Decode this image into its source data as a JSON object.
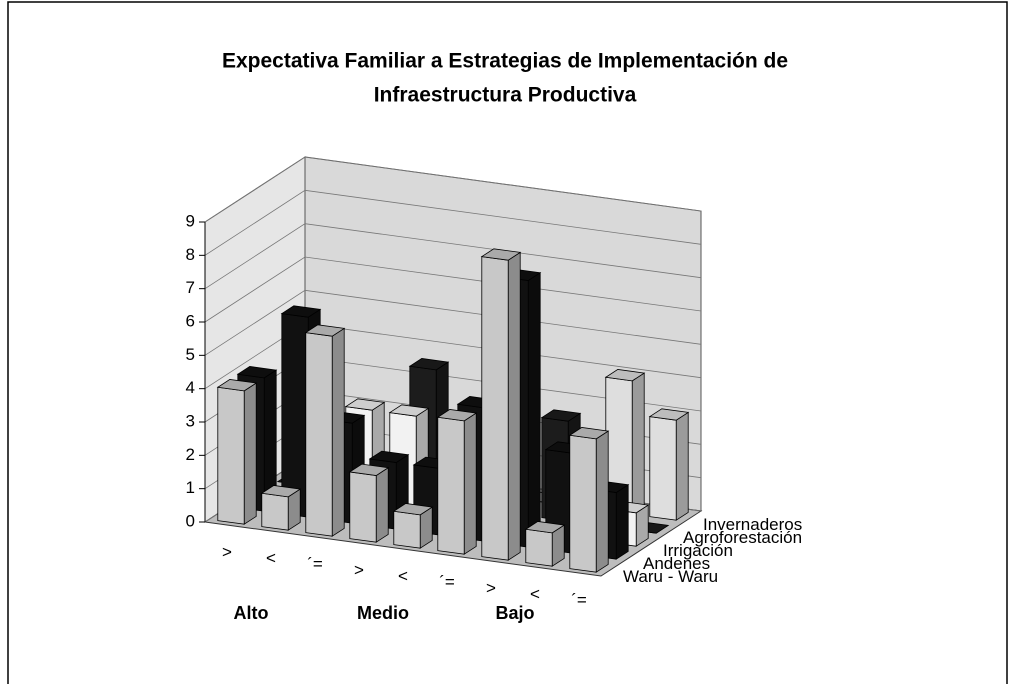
{
  "chart_data": {
    "type": "bar3d",
    "title": [
      "Expectativa Familiar a Estrategias de Implementación de",
      "Infraestructura Productiva"
    ],
    "categories": [
      ">",
      "<",
      "´=",
      ">",
      "<",
      "´=",
      ">",
      "<",
      "´="
    ],
    "groups": [
      "Alto",
      "Medio",
      "Bajo"
    ],
    "series": [
      {
        "name": "Waru - Waru",
        "color": "#c8c8c8",
        "values": [
          4,
          1,
          6,
          2,
          1,
          4,
          9,
          1,
          4
        ]
      },
      {
        "name": "Andenes",
        "color": "#111111",
        "values": [
          4,
          6,
          3,
          2,
          2,
          4,
          8,
          3,
          2
        ]
      },
      {
        "name": "Irrigación",
        "color": "#f2f2f2",
        "values": [
          0,
          0,
          3,
          3,
          0,
          1,
          0,
          2,
          1
        ]
      },
      {
        "name": "Agroforestación",
        "color": "#1c1c1c",
        "values": [
          0,
          0,
          0,
          4,
          0,
          0,
          3,
          0,
          0
        ]
      },
      {
        "name": "Invernaderos",
        "color": "#dedede",
        "values": [
          0,
          0,
          0,
          0,
          0,
          0,
          0,
          4,
          3
        ]
      }
    ],
    "ylim": [
      0,
      9
    ],
    "yticks": [
      0,
      1,
      2,
      3,
      4,
      5,
      6,
      7,
      8,
      9
    ],
    "grid": true
  }
}
